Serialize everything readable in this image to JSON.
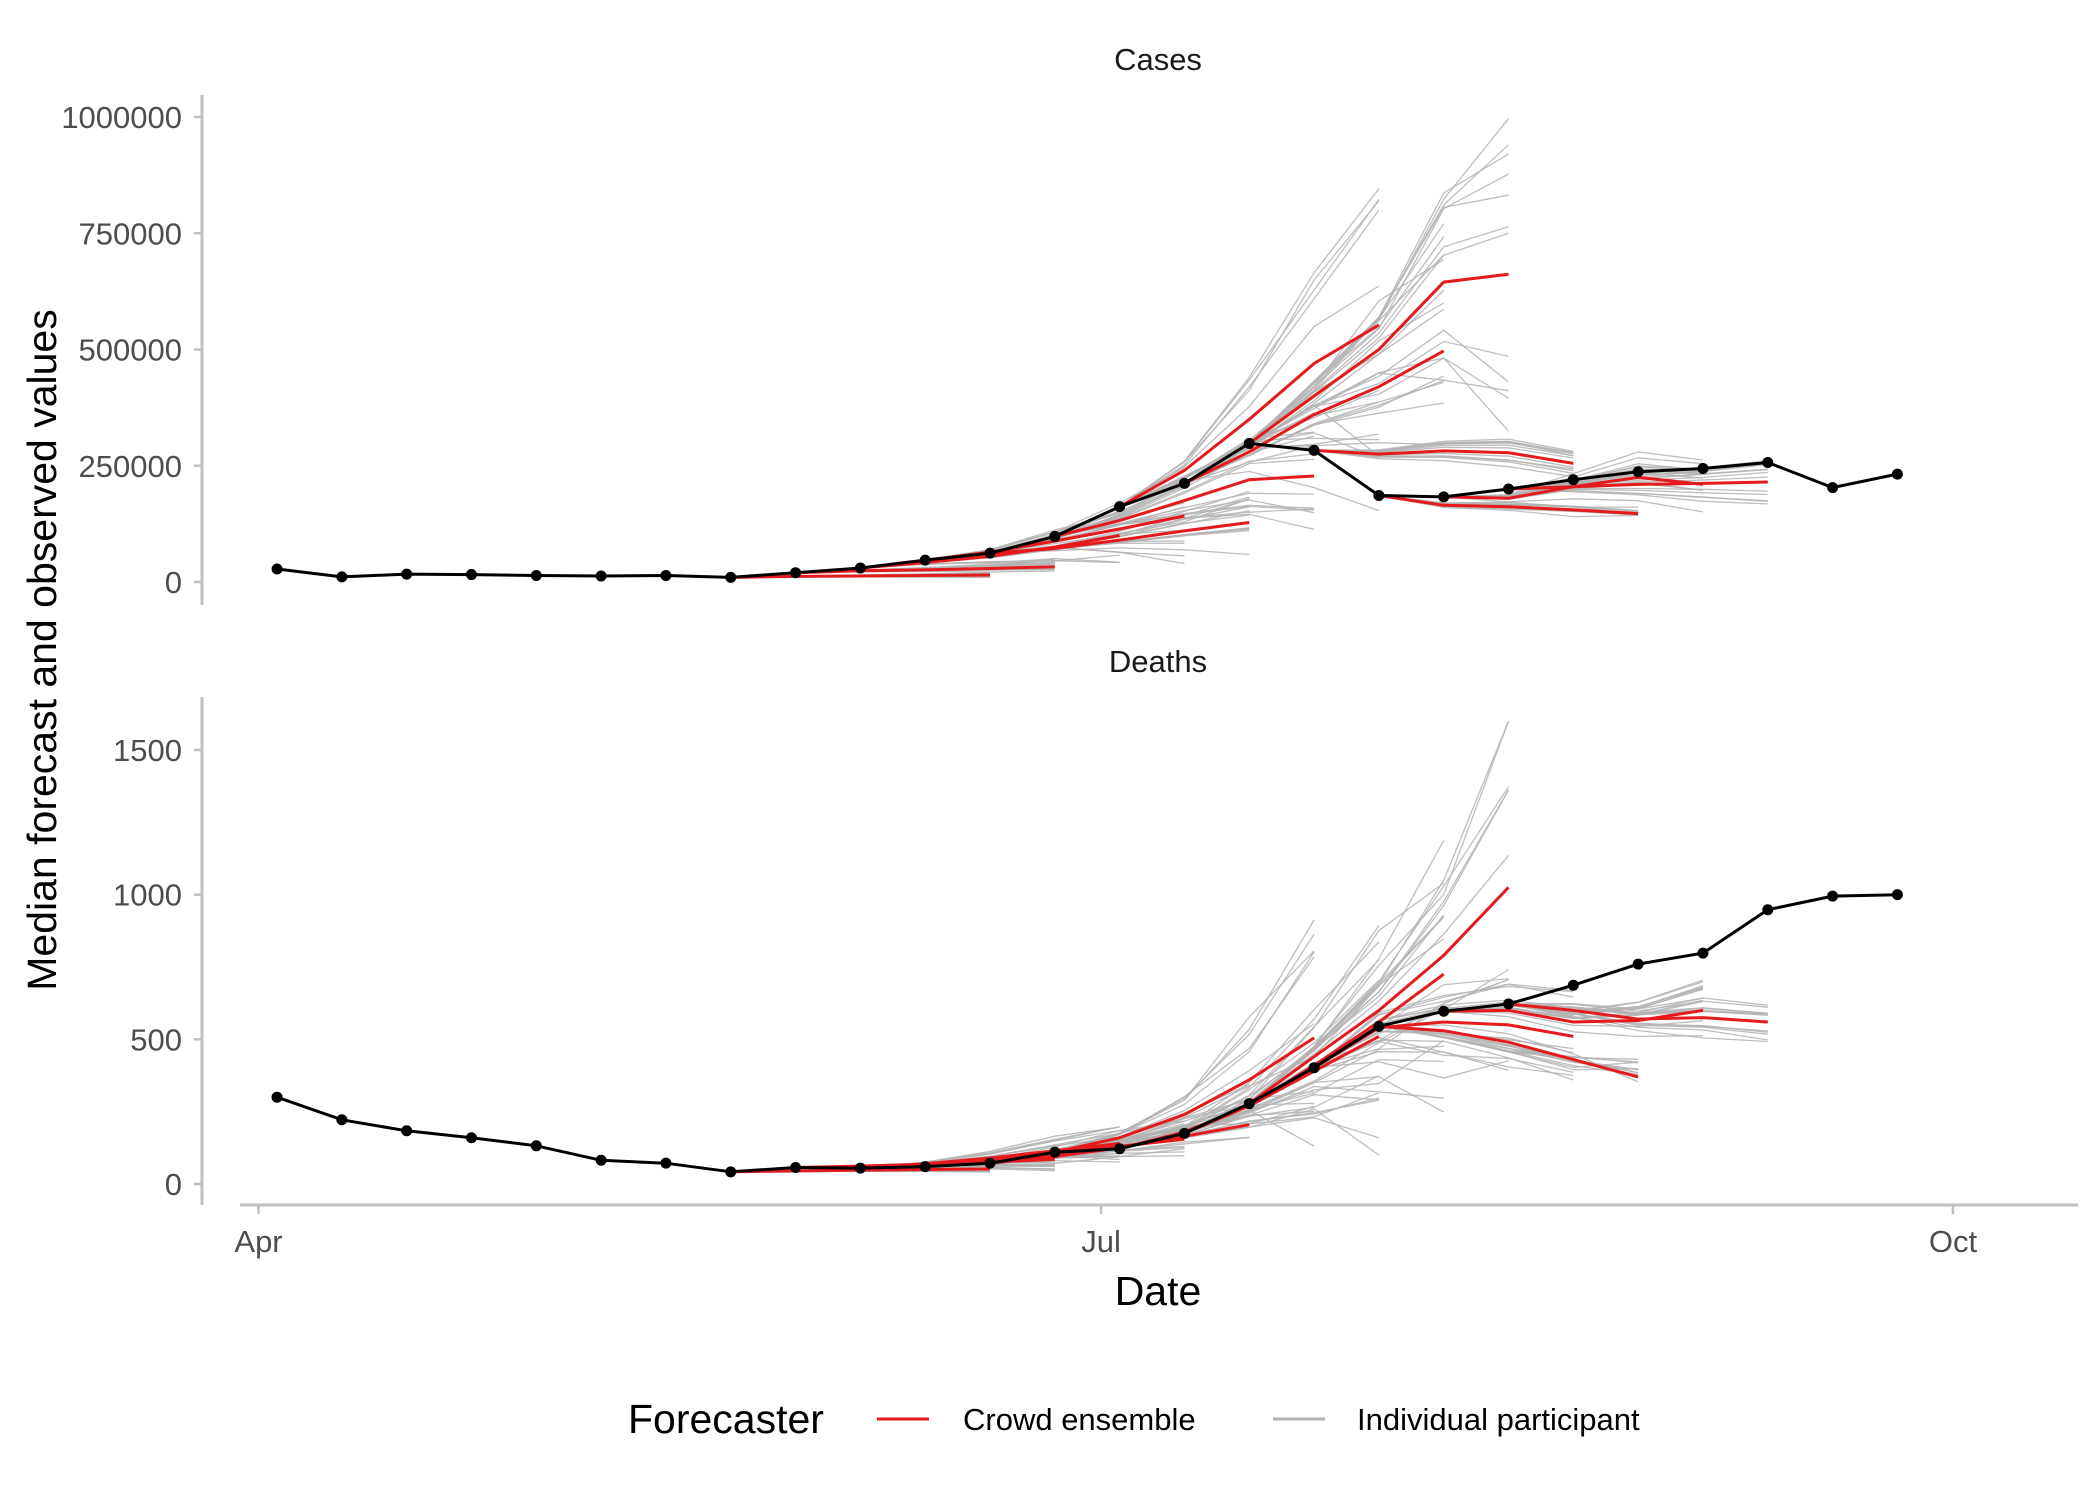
{
  "chart_data": {
    "type": "line",
    "xlabel": "Date",
    "ylabel": "Median forecast and observed values",
    "x_ticks": [
      "Apr",
      "Jul",
      "Oct"
    ],
    "x_tick_dates": [
      "2021-04-01",
      "2021-07-01",
      "2021-10-01"
    ],
    "legend": {
      "title": "Forecaster",
      "position": "bottom",
      "entries": [
        {
          "label": "Crowd ensemble",
          "color": "#e41a1c"
        },
        {
          "label": "Individual participant",
          "color": "#b3b3b3"
        }
      ]
    },
    "observed_color": "#000000",
    "facets": [
      {
        "title": "Cases",
        "ylim": [
          0,
          1000000
        ],
        "yticks": [
          0,
          250000,
          500000,
          750000,
          1000000
        ],
        "observed": {
          "x": [
            "2021-04-03",
            "2021-04-10",
            "2021-04-17",
            "2021-04-24",
            "2021-05-01",
            "2021-05-08",
            "2021-05-15",
            "2021-05-22",
            "2021-05-29",
            "2021-06-05",
            "2021-06-12",
            "2021-06-19",
            "2021-06-26",
            "2021-07-03",
            "2021-07-10",
            "2021-07-17",
            "2021-07-24",
            "2021-07-31",
            "2021-08-07",
            "2021-08-14",
            "2021-08-21",
            "2021-08-28",
            "2021-09-04",
            "2021-09-11",
            "2021-09-18",
            "2021-09-25"
          ],
          "y": [
            28000,
            11000,
            17000,
            16000,
            14000,
            13000,
            14000,
            10000,
            20000,
            30000,
            47000,
            62000,
            98000,
            162000,
            212000,
            298000,
            283000,
            186000,
            183000,
            200000,
            220000,
            237000,
            244000,
            257000,
            203000,
            232000
          ]
        },
        "ensemble": [
          {
            "x": [
              "2021-05-22",
              "2021-05-29",
              "2021-06-05",
              "2021-06-12",
              "2021-06-19"
            ],
            "y": [
              10000,
              12000,
              13000,
              14000,
              15000
            ]
          },
          {
            "x": [
              "2021-05-29",
              "2021-06-05",
              "2021-06-12",
              "2021-06-19",
              "2021-06-26"
            ],
            "y": [
              20000,
              24000,
              26000,
              29000,
              33000
            ]
          },
          {
            "x": [
              "2021-06-05",
              "2021-06-12",
              "2021-06-19",
              "2021-06-26",
              "2021-07-03"
            ],
            "y": [
              30000,
              42000,
              55000,
              75000,
              100000
            ]
          },
          {
            "x": [
              "2021-06-12",
              "2021-06-19",
              "2021-06-26",
              "2021-07-03",
              "2021-07-10"
            ],
            "y": [
              47000,
              64000,
              88000,
              114000,
              142000
            ]
          },
          {
            "x": [
              "2021-06-19",
              "2021-06-26",
              "2021-07-03",
              "2021-07-10",
              "2021-07-17"
            ],
            "y": [
              62000,
              72000,
              90000,
              110000,
              128000
            ]
          },
          {
            "x": [
              "2021-06-26",
              "2021-07-03",
              "2021-07-10",
              "2021-07-17",
              "2021-07-24"
            ],
            "y": [
              98000,
              132000,
              175000,
              220000,
              228000
            ]
          },
          {
            "x": [
              "2021-07-03",
              "2021-07-10",
              "2021-07-17",
              "2021-07-24",
              "2021-07-31"
            ],
            "y": [
              162000,
              240000,
              350000,
              470000,
              553000
            ]
          },
          {
            "x": [
              "2021-07-10",
              "2021-07-17",
              "2021-07-24",
              "2021-07-31",
              "2021-08-07"
            ],
            "y": [
              212000,
              280000,
              360000,
              420000,
              497000
            ]
          },
          {
            "x": [
              "2021-07-17",
              "2021-07-24",
              "2021-07-31",
              "2021-08-07",
              "2021-08-14"
            ],
            "y": [
              298000,
              400000,
              500000,
              645000,
              662000
            ]
          },
          {
            "x": [
              "2021-07-24",
              "2021-07-31",
              "2021-08-07",
              "2021-08-14",
              "2021-08-21"
            ],
            "y": [
              283000,
              275000,
              282000,
              278000,
              255000
            ]
          },
          {
            "x": [
              "2021-07-31",
              "2021-08-07",
              "2021-08-14",
              "2021-08-21",
              "2021-08-28"
            ],
            "y": [
              186000,
              165000,
              162000,
              155000,
              147000
            ]
          },
          {
            "x": [
              "2021-08-07",
              "2021-08-14",
              "2021-08-21",
              "2021-08-28",
              "2021-09-04"
            ],
            "y": [
              183000,
              180000,
              205000,
              225000,
              210000
            ]
          },
          {
            "x": [
              "2021-08-14",
              "2021-08-21",
              "2021-08-28",
              "2021-09-04",
              "2021-09-11"
            ],
            "y": [
              200000,
              205000,
              210000,
              212000,
              215000
            ]
          }
        ]
      },
      {
        "title": "Deaths",
        "ylim": [
          0,
          1600
        ],
        "yticks": [
          0,
          500,
          1000,
          1500
        ],
        "observed": {
          "x": [
            "2021-04-03",
            "2021-04-10",
            "2021-04-17",
            "2021-04-24",
            "2021-05-01",
            "2021-05-08",
            "2021-05-15",
            "2021-05-22",
            "2021-05-29",
            "2021-06-05",
            "2021-06-12",
            "2021-06-19",
            "2021-06-26",
            "2021-07-03",
            "2021-07-10",
            "2021-07-17",
            "2021-07-24",
            "2021-07-31",
            "2021-08-07",
            "2021-08-14",
            "2021-08-21",
            "2021-08-28",
            "2021-09-04",
            "2021-09-11",
            "2021-09-18",
            "2021-09-25"
          ],
          "y": [
            300,
            222,
            184,
            160,
            132,
            82,
            72,
            42,
            57,
            55,
            60,
            72,
            110,
            122,
            175,
            278,
            402,
            545,
            597,
            622,
            687,
            760,
            798,
            948,
            995,
            1000
          ]
        },
        "ensemble": [
          {
            "x": [
              "2021-05-22",
              "2021-05-29",
              "2021-06-05",
              "2021-06-12",
              "2021-06-19"
            ],
            "y": [
              42,
              45,
              48,
              50,
              52
            ]
          },
          {
            "x": [
              "2021-05-29",
              "2021-06-05",
              "2021-06-12",
              "2021-06-19",
              "2021-06-26"
            ],
            "y": [
              57,
              62,
              68,
              76,
              85
            ]
          },
          {
            "x": [
              "2021-06-05",
              "2021-06-12",
              "2021-06-19",
              "2021-06-26",
              "2021-07-03"
            ],
            "y": [
              55,
              70,
              90,
              115,
              140
            ]
          },
          {
            "x": [
              "2021-06-12",
              "2021-06-19",
              "2021-06-26",
              "2021-07-03",
              "2021-07-10"
            ],
            "y": [
              60,
              80,
              105,
              130,
              155
            ]
          },
          {
            "x": [
              "2021-06-19",
              "2021-06-26",
              "2021-07-03",
              "2021-07-10",
              "2021-07-17"
            ],
            "y": [
              72,
              95,
              125,
              165,
              205
            ]
          },
          {
            "x": [
              "2021-06-26",
              "2021-07-03",
              "2021-07-10",
              "2021-07-17",
              "2021-07-24"
            ],
            "y": [
              110,
              160,
              240,
              360,
              505
            ]
          },
          {
            "x": [
              "2021-07-03",
              "2021-07-10",
              "2021-07-17",
              "2021-07-24",
              "2021-07-31"
            ],
            "y": [
              122,
              180,
              270,
              390,
              510
            ]
          },
          {
            "x": [
              "2021-07-10",
              "2021-07-17",
              "2021-07-24",
              "2021-07-31",
              "2021-08-07"
            ],
            "y": [
              175,
              270,
              410,
              560,
              725
            ]
          },
          {
            "x": [
              "2021-07-17",
              "2021-07-24",
              "2021-07-31",
              "2021-08-07",
              "2021-08-14"
            ],
            "y": [
              278,
              440,
              600,
              790,
              1025
            ]
          },
          {
            "x": [
              "2021-07-24",
              "2021-07-31",
              "2021-08-07",
              "2021-08-14",
              "2021-08-21"
            ],
            "y": [
              402,
              540,
              560,
              550,
              510
            ]
          },
          {
            "x": [
              "2021-07-31",
              "2021-08-07",
              "2021-08-14",
              "2021-08-21",
              "2021-08-28"
            ],
            "y": [
              545,
              530,
              490,
              430,
              370
            ]
          },
          {
            "x": [
              "2021-08-07",
              "2021-08-14",
              "2021-08-21",
              "2021-08-28",
              "2021-09-04"
            ],
            "y": [
              597,
              600,
              560,
              565,
              600
            ]
          },
          {
            "x": [
              "2021-08-14",
              "2021-08-21",
              "2021-08-28",
              "2021-09-04",
              "2021-09-11"
            ],
            "y": [
              622,
              600,
              570,
              575,
              560
            ]
          }
        ]
      }
    ]
  }
}
